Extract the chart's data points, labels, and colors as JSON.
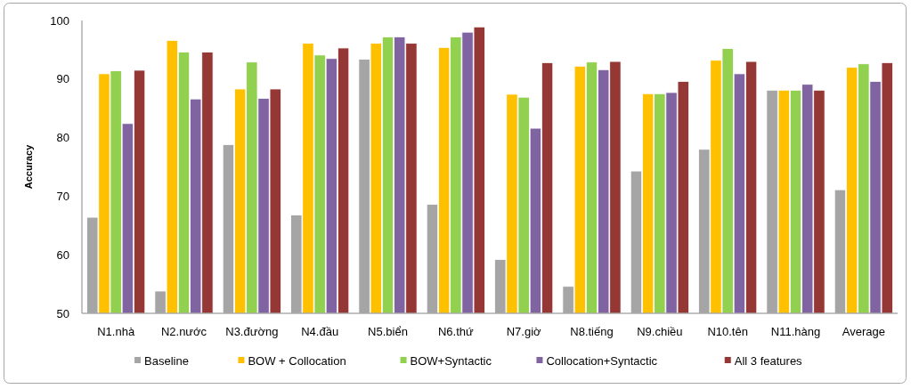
{
  "chart_data": {
    "type": "bar",
    "ylabel": "Accuracy",
    "categories": [
      "N1.nhà",
      "N2.nước",
      "N3.đường",
      "N4.đầu",
      "N5.biển",
      "N6.thứ",
      "N7.giờ",
      "N8.tiếng",
      "N9.chiều",
      "N10.tên",
      "N11.hàng",
      "Average"
    ],
    "series": [
      {
        "name": "Baseline",
        "color": "#a5a5a5",
        "values": [
          66.4,
          53.8,
          78.8,
          66.8,
          93.4,
          68.6,
          59.2,
          54.6,
          74.3,
          78.0,
          88.1,
          71.1
        ]
      },
      {
        "name": "BOW + Collocation",
        "color": "#ffc000",
        "values": [
          90.9,
          96.6,
          88.3,
          96.1,
          96.1,
          95.4,
          87.4,
          92.2,
          87.5,
          93.2,
          88.1,
          92.0
        ]
      },
      {
        "name": "BOW+Syntactic",
        "color": "#92d050",
        "values": [
          91.4,
          94.6,
          92.9,
          94.1,
          97.2,
          97.2,
          86.9,
          92.9,
          87.5,
          95.2,
          88.1,
          92.6
        ]
      },
      {
        "name": "Collocation+Syntactic",
        "color": "#8064a2",
        "values": [
          82.4,
          86.6,
          86.7,
          93.5,
          97.2,
          98.0,
          81.6,
          91.6,
          87.7,
          90.9,
          89.1,
          89.6
        ]
      },
      {
        "name": "All 3 features",
        "color": "#953735",
        "values": [
          91.5,
          94.6,
          88.3,
          95.3,
          96.1,
          98.9,
          92.8,
          93.0,
          89.6,
          93.0,
          88.1,
          92.8
        ]
      }
    ],
    "ylim": [
      50,
      100
    ],
    "yticks": [
      50,
      60,
      70,
      80,
      90,
      100
    ],
    "legend": "bottom"
  }
}
